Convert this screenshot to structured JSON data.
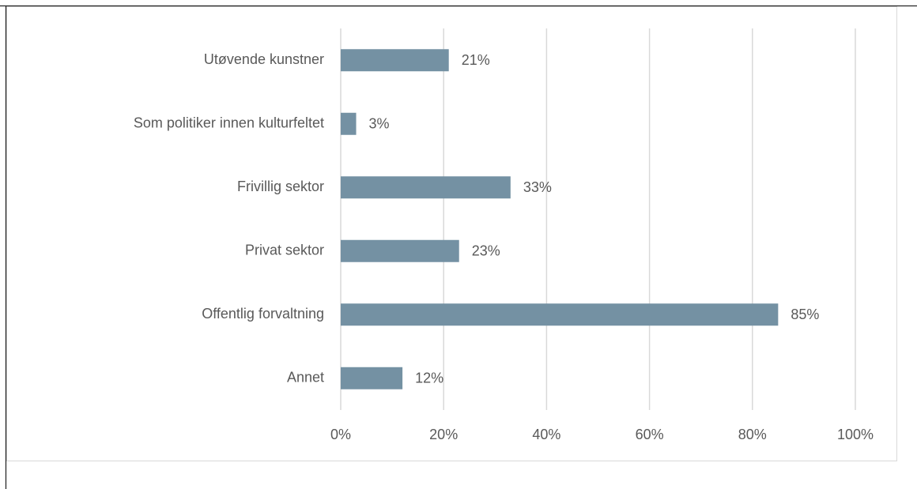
{
  "chart_data": {
    "type": "bar",
    "orientation": "horizontal",
    "categories": [
      "Utøvende kunstner",
      "Som politiker innen kulturfeltet",
      "Frivillig sektor",
      "Privat sektor",
      "Offentlig forvaltning",
      "Annet"
    ],
    "values": [
      21,
      3,
      33,
      23,
      85,
      12
    ],
    "value_labels": [
      "21%",
      "3%",
      "33%",
      "23%",
      "85%",
      "12%"
    ],
    "color": "#7491a3",
    "xlim": [
      0,
      100
    ],
    "xticks": [
      {
        "value": 0,
        "label": "0%"
      },
      {
        "value": 20,
        "label": "20%"
      },
      {
        "value": 40,
        "label": "40%"
      },
      {
        "value": 60,
        "label": "60%"
      },
      {
        "value": 80,
        "label": "80%"
      },
      {
        "value": 100,
        "label": "100%"
      }
    ],
    "grid": true
  }
}
